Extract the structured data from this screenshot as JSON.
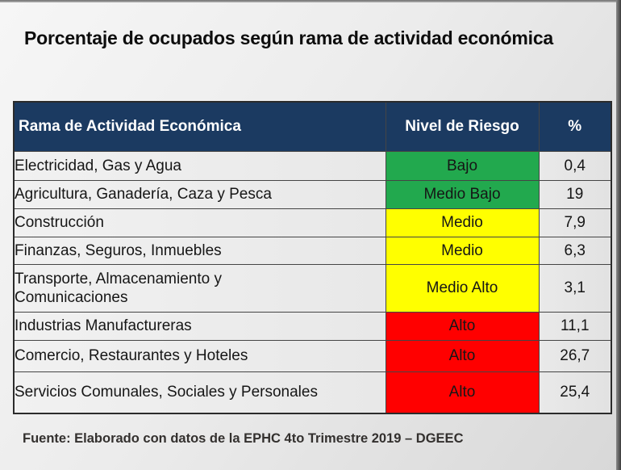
{
  "page": {
    "title": "Porcentaje de ocupados según rama de actividad económica",
    "footer": "Fuente: Elaborado con datos de la EPHC 4to Trimestre 2019 – DGEEC"
  },
  "table": {
    "headers": {
      "activity": "Rama de Actividad Económica",
      "risk": "Nivel de Riesgo",
      "percent": "%"
    },
    "rows": [
      {
        "activity": "Electricidad, Gas y Agua",
        "risk": "Bajo",
        "percent": "0,4"
      },
      {
        "activity": "Agricultura, Ganadería, Caza y Pesca",
        "risk": "Medio Bajo",
        "percent": "19"
      },
      {
        "activity": "Construcción",
        "risk": "Medio",
        "percent": "7,9"
      },
      {
        "activity": "Finanzas, Seguros, Inmuebles",
        "risk": "Medio",
        "percent": "6,3"
      },
      {
        "activity": "Transporte, Almacenamiento y\nComunicaciones",
        "risk": "Medio Alto",
        "percent": "3,1"
      },
      {
        "activity": "Industrias Manufactureras",
        "risk": "Alto",
        "percent": "11,1"
      },
      {
        "activity": "Comercio, Restaurantes y Hoteles",
        "risk": "Alto",
        "percent": "26,7"
      },
      {
        "activity": "Servicios Comunales, Sociales y Personales",
        "risk": "Alto",
        "percent": "25,4"
      }
    ]
  },
  "colors": {
    "header_bg": "#1b3a61",
    "header_text": "#ffffff",
    "risk_levels": {
      "Bajo": "#22a94e",
      "Medio Bajo": "#22a94e",
      "Medio": "#ffff00",
      "Medio Alto": "#ffff00",
      "Alto": "#ff0000"
    }
  },
  "chart_data": {
    "type": "table",
    "title": "Porcentaje de ocupados según rama de actividad económica",
    "columns": [
      "Rama de Actividad Económica",
      "Nivel de Riesgo",
      "%"
    ],
    "rows": [
      [
        "Electricidad, Gas y Agua",
        "Bajo",
        0.4
      ],
      [
        "Agricultura, Ganadería, Caza y Pesca",
        "Medio Bajo",
        19
      ],
      [
        "Construcción",
        "Medio",
        7.9
      ],
      [
        "Finanzas, Seguros, Inmuebles",
        "Medio",
        6.3
      ],
      [
        "Transporte, Almacenamiento y Comunicaciones",
        "Medio Alto",
        3.1
      ],
      [
        "Industrias Manufactureras",
        "Alto",
        11.1
      ],
      [
        "Comercio, Restaurantes y Hoteles",
        "Alto",
        26.7
      ],
      [
        "Servicios Comunales, Sociales y Personales",
        "Alto",
        25.4
      ]
    ],
    "source": "Fuente: Elaborado con datos de la EPHC 4to Trimestre 2019 – DGEEC"
  }
}
